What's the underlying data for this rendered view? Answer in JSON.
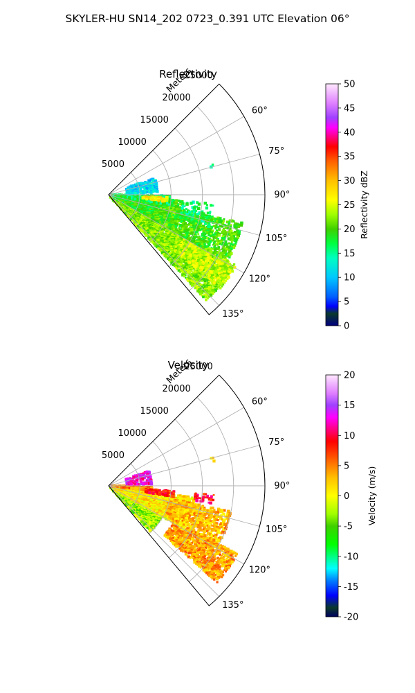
{
  "figure": {
    "suptitle": "SKYLER-HU  SN14_202  0723_0.391 UTC Elevation 06°"
  },
  "chart_data": [
    {
      "type": "polar-sector-ppi",
      "title": "Reflectivity",
      "range_label": "Meters",
      "radial_ticks": [
        5000,
        10000,
        15000,
        20000,
        25000
      ],
      "radial_tick_labels": [
        "5000",
        "10000",
        "15000",
        "20000",
        "25000"
      ],
      "rmax": 25000,
      "theta_range_deg": [
        45,
        140
      ],
      "angle_ticks_deg": [
        60,
        75,
        90,
        105,
        120,
        135
      ],
      "angle_tick_labels": [
        "60°",
        "75°",
        "90°",
        "105°",
        "120°",
        "135°"
      ],
      "grid": true,
      "colorbar": {
        "label": "Reflectivity dBZ",
        "min": 0,
        "max": 50,
        "ticks": [
          0,
          5,
          10,
          15,
          20,
          25,
          30,
          35,
          40,
          45,
          50
        ],
        "tick_labels": [
          "0",
          "5",
          "10",
          "15",
          "20",
          "25",
          "30",
          "35",
          "40",
          "45",
          "50"
        ],
        "color_stops": [
          {
            "v": 0,
            "c": "#000080"
          },
          {
            "v": 2.5,
            "c": "#0b3a2a"
          },
          {
            "v": 4,
            "c": "#0000ff"
          },
          {
            "v": 6,
            "c": "#0060ff"
          },
          {
            "v": 10,
            "c": "#00c8ff"
          },
          {
            "v": 14,
            "c": "#00ffc0"
          },
          {
            "v": 17,
            "c": "#00ff40"
          },
          {
            "v": 20,
            "c": "#40d000"
          },
          {
            "v": 23,
            "c": "#a0ff00"
          },
          {
            "v": 26,
            "c": "#ffff00"
          },
          {
            "v": 30,
            "c": "#ffc000"
          },
          {
            "v": 34,
            "c": "#ff6000"
          },
          {
            "v": 37,
            "c": "#ff0000"
          },
          {
            "v": 39,
            "c": "#ff0080"
          },
          {
            "v": 41,
            "c": "#ff00ff"
          },
          {
            "v": 43,
            "c": "#a040ff"
          },
          {
            "v": 46,
            "c": "#e080ff"
          },
          {
            "v": 50,
            "c": "#ffe8ff"
          }
        ]
      },
      "echo_regions": [
        {
          "theta": [
            120,
            138
          ],
          "r": [
            500,
            23000
          ],
          "value": 22,
          "density": 0.9
        },
        {
          "theta": [
            119,
            130
          ],
          "r": [
            14000,
            23500
          ],
          "value": 24,
          "density": 0.85
        },
        {
          "theta": [
            95,
            118
          ],
          "r": [
            1000,
            12000
          ],
          "value": 19,
          "density": 0.75
        },
        {
          "theta": [
            102,
            120
          ],
          "r": [
            8000,
            22000
          ],
          "value": 20,
          "density": 0.7
        },
        {
          "theta": [
            91,
            100
          ],
          "r": [
            500,
            10000
          ],
          "value": 17,
          "density": 0.8
        },
        {
          "theta": [
            93,
            97
          ],
          "r": [
            5500,
            9500
          ],
          "value": 27,
          "density": 0.6
        },
        {
          "theta": [
            70,
            88
          ],
          "r": [
            3000,
            8000
          ],
          "value": 11,
          "density": 0.55
        },
        {
          "theta": [
            95,
            108
          ],
          "r": [
            12000,
            17000
          ],
          "value": 16,
          "density": 0.25
        },
        {
          "theta": [
            74,
            76
          ],
          "r": [
            17000,
            17500
          ],
          "value": 14,
          "density": 0.6
        }
      ]
    },
    {
      "type": "polar-sector-ppi",
      "title": "Velocity",
      "range_label": "Meters",
      "radial_ticks": [
        5000,
        10000,
        15000,
        20000,
        25000
      ],
      "radial_tick_labels": [
        "5000",
        "10000",
        "15000",
        "20000",
        "25000"
      ],
      "rmax": 25000,
      "theta_range_deg": [
        45,
        140
      ],
      "angle_ticks_deg": [
        60,
        75,
        90,
        105,
        120,
        135
      ],
      "angle_tick_labels": [
        "60°",
        "75°",
        "90°",
        "105°",
        "120°",
        "135°"
      ],
      "grid": true,
      "colorbar": {
        "label": "Velocity (m/s)",
        "min": -20,
        "max": 20,
        "ticks": [
          -20,
          -15,
          -10,
          -5,
          0,
          5,
          10,
          15,
          20
        ],
        "tick_labels": [
          "-20",
          "-15",
          "-10",
          "-5",
          "0",
          "5",
          "10",
          "15",
          "20"
        ],
        "color_stops": [
          {
            "v": -20,
            "c": "#000060"
          },
          {
            "v": -18.5,
            "c": "#0b3a2a"
          },
          {
            "v": -16.5,
            "c": "#0000ff"
          },
          {
            "v": -14,
            "c": "#0080ff"
          },
          {
            "v": -12,
            "c": "#00ffff"
          },
          {
            "v": -10,
            "c": "#00ff80"
          },
          {
            "v": -8,
            "c": "#00ff00"
          },
          {
            "v": -5,
            "c": "#40d000"
          },
          {
            "v": -3,
            "c": "#a0ff00"
          },
          {
            "v": 0,
            "c": "#ffff00"
          },
          {
            "v": 3,
            "c": "#ffc000"
          },
          {
            "v": 6,
            "c": "#ff6000"
          },
          {
            "v": 9,
            "c": "#ff0000"
          },
          {
            "v": 11,
            "c": "#ff0080"
          },
          {
            "v": 13,
            "c": "#ff00ff"
          },
          {
            "v": 15,
            "c": "#a040ff"
          },
          {
            "v": 17,
            "c": "#e080ff"
          },
          {
            "v": 20,
            "c": "#ffe8ff"
          }
        ]
      },
      "echo_regions": [
        {
          "theta": [
            121,
            138
          ],
          "r": [
            500,
            10000
          ],
          "value": -3,
          "density": 0.85
        },
        {
          "theta": [
            118,
            132
          ],
          "r": [
            12000,
            23500
          ],
          "value": 4,
          "density": 0.85
        },
        {
          "theta": [
            98,
            120
          ],
          "r": [
            1000,
            14000
          ],
          "value": 1,
          "density": 0.8
        },
        {
          "theta": [
            102,
            118
          ],
          "r": [
            10000,
            20000
          ],
          "value": 3,
          "density": 0.65
        },
        {
          "theta": [
            91,
            97
          ],
          "r": [
            500,
            7000
          ],
          "value": 5,
          "density": 0.8
        },
        {
          "theta": [
            95,
            100
          ],
          "r": [
            6000,
            10500
          ],
          "value": 8,
          "density": 0.6
        },
        {
          "theta": [
            70,
            88
          ],
          "r": [
            3000,
            7000
          ],
          "value": 13,
          "density": 0.5
        },
        {
          "theta": [
            95,
            100
          ],
          "r": [
            14000,
            17000
          ],
          "value": 9,
          "density": 0.5
        },
        {
          "theta": [
            75,
            77
          ],
          "r": [
            17000,
            17500
          ],
          "value": 3,
          "density": 0.6
        }
      ]
    }
  ]
}
